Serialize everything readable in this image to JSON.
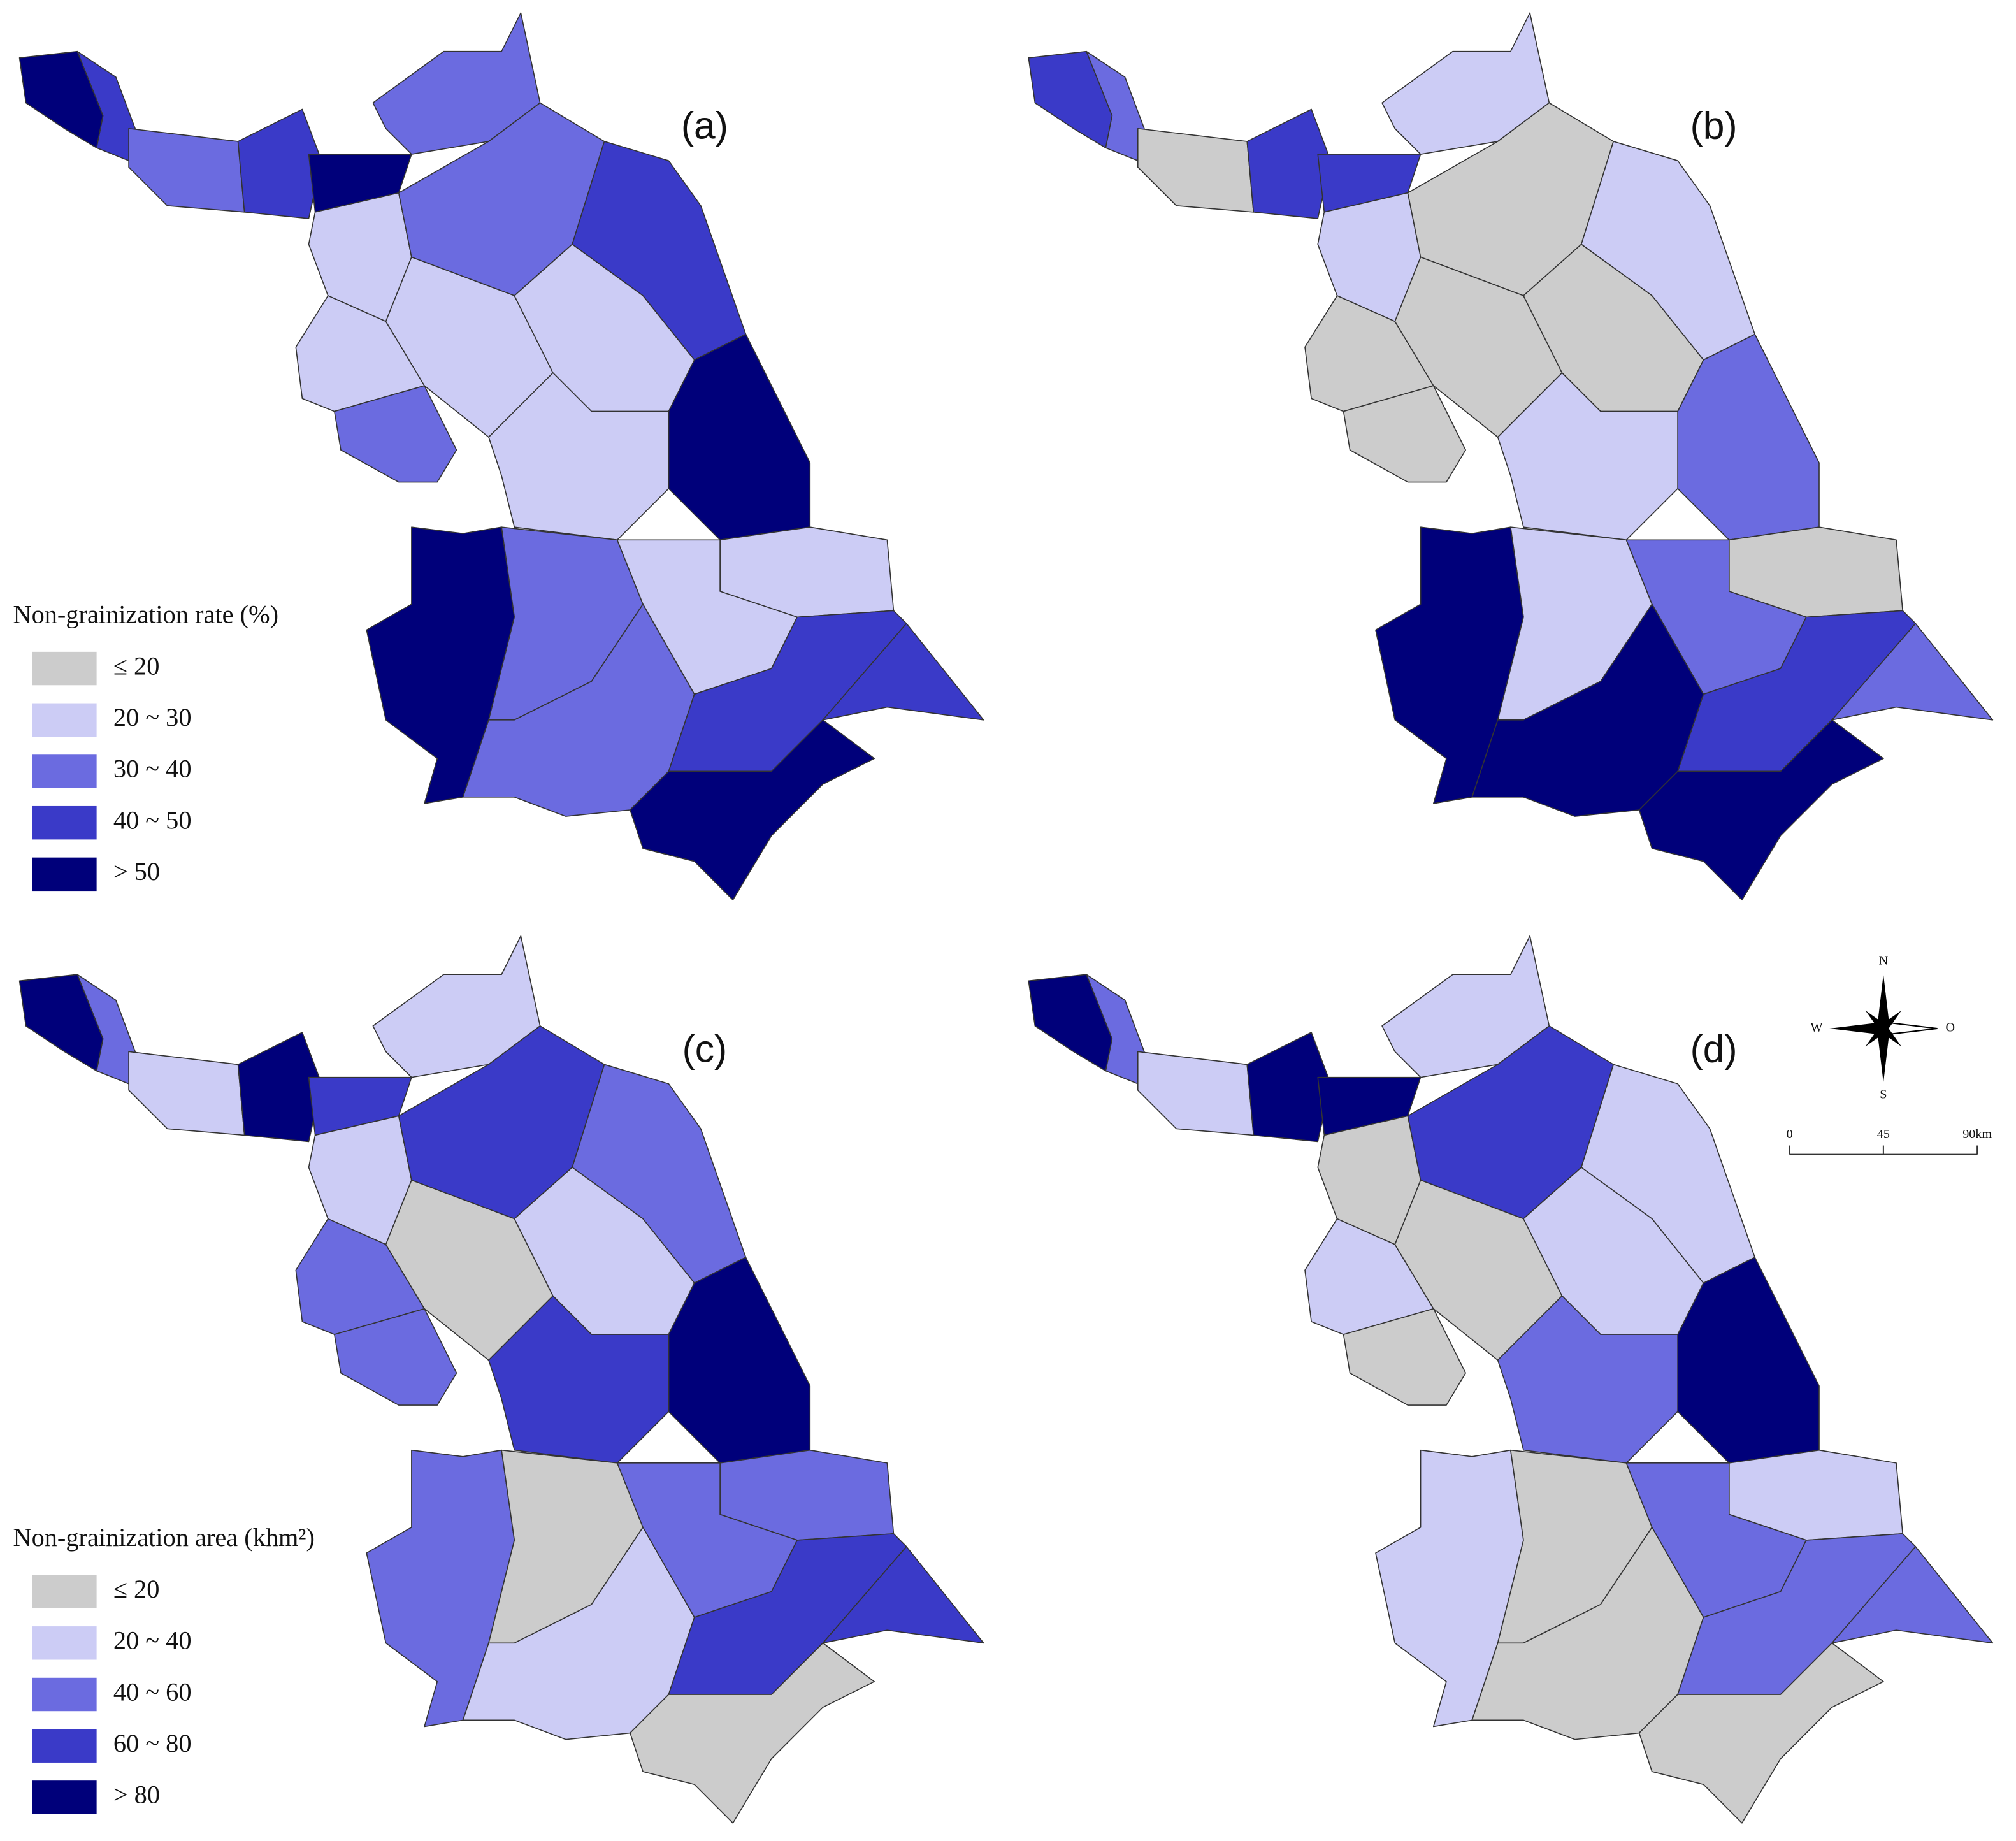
{
  "panels": [
    {
      "label": "(a)",
      "legend": "rate",
      "region_classes": [
        4,
        3,
        2,
        3,
        4,
        2,
        1,
        2,
        3,
        1,
        1,
        1,
        4,
        2,
        1,
        1,
        4,
        2,
        1,
        2,
        3,
        3,
        4
      ]
    },
    {
      "label": "(b)",
      "legend": "rate",
      "region_classes": [
        3,
        2,
        0,
        3,
        3,
        1,
        1,
        0,
        1,
        0,
        0,
        0,
        2,
        0,
        1,
        0,
        4,
        1,
        2,
        4,
        3,
        2,
        4
      ]
    },
    {
      "label": "(c)",
      "legend": "area",
      "region_classes": [
        4,
        2,
        1,
        4,
        3,
        1,
        1,
        3,
        2,
        2,
        0,
        1,
        4,
        2,
        3,
        2,
        2,
        0,
        2,
        1,
        3,
        3,
        0
      ]
    },
    {
      "label": "(d)",
      "legend": "area",
      "region_classes": [
        4,
        2,
        1,
        4,
        4,
        1,
        0,
        3,
        1,
        1,
        0,
        1,
        4,
        0,
        2,
        1,
        1,
        0,
        2,
        0,
        2,
        2,
        0
      ]
    }
  ],
  "legends": {
    "rate": {
      "title": "Non-grainization rate (%)",
      "items": [
        {
          "label": "≤ 20",
          "color": "#cccccc"
        },
        {
          "label": "20 ~ 30",
          "color": "#ccccf5"
        },
        {
          "label": "30 ~ 40",
          "color": "#6b6be0"
        },
        {
          "label": "40 ~ 50",
          "color": "#3a3ac8"
        },
        {
          "label": "> 50",
          "color": "#00007a"
        }
      ]
    },
    "area": {
      "title": "Non-grainization area (khm²)",
      "items": [
        {
          "label": "≤ 20",
          "color": "#cccccc"
        },
        {
          "label": "20 ~ 40",
          "color": "#ccccf5"
        },
        {
          "label": "40 ~ 60",
          "color": "#6b6be0"
        },
        {
          "label": "60 ~ 80",
          "color": "#3a3ac8"
        },
        {
          "label": "> 80",
          "color": "#00007a"
        }
      ]
    }
  },
  "compass": {
    "north": "N",
    "west": "W",
    "east": "O",
    "south": "S"
  },
  "scale_bar": {
    "labels": [
      "0",
      "45",
      "90km"
    ]
  }
}
